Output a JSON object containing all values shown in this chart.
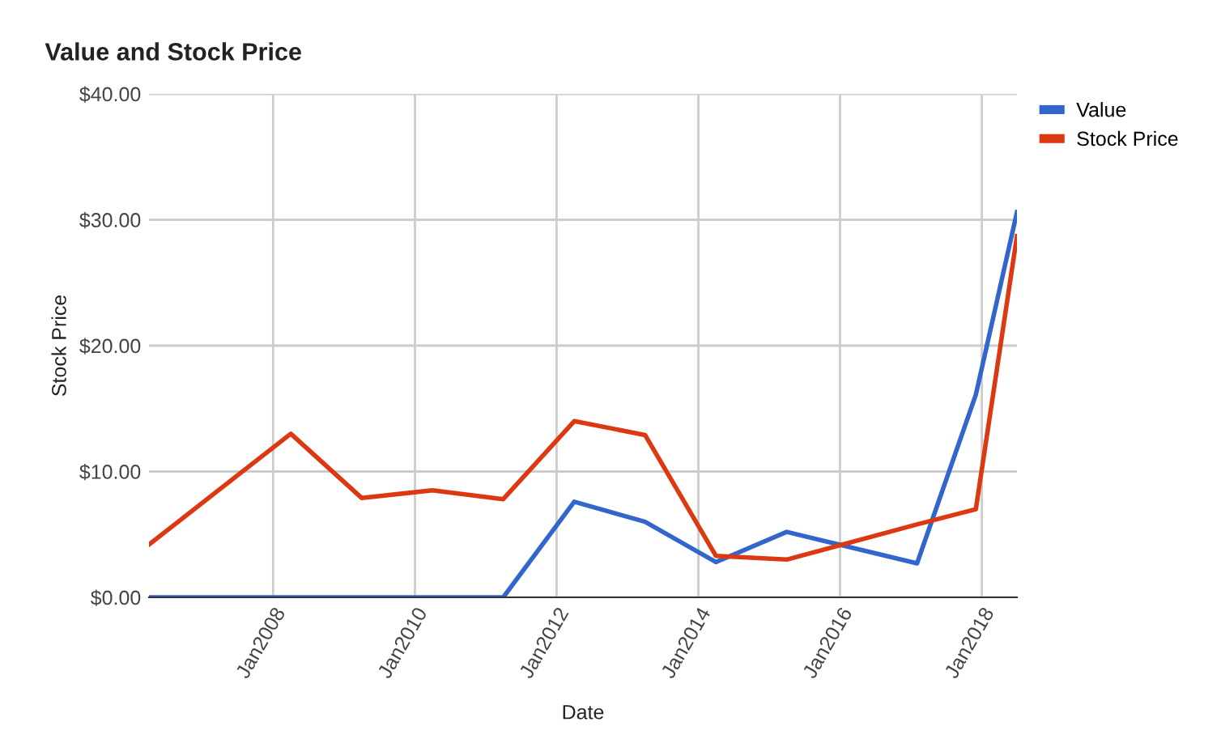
{
  "chart_data": {
    "type": "line",
    "title": "Value and Stock Price",
    "xlabel": "Date",
    "ylabel": "Stock Price",
    "x": [
      "2006-04",
      "2008-04",
      "2009-04",
      "2010-04",
      "2011-04",
      "2012-04",
      "2013-04",
      "2014-04",
      "2015-04",
      "2017-02",
      "2017-12",
      "2018-07"
    ],
    "series": [
      {
        "name": "Value",
        "color": "#3366cc",
        "values": [
          0,
          0,
          0,
          0,
          0,
          7.6,
          6.0,
          2.8,
          5.2,
          2.7,
          16.1,
          30.6
        ]
      },
      {
        "name": "Stock Price",
        "color": "#dc3912",
        "values": [
          4.2,
          13.0,
          7.9,
          8.5,
          7.8,
          14.0,
          12.9,
          3.3,
          3.0,
          5.8,
          7.0,
          28.7
        ]
      }
    ],
    "xlim": [
      "2006-04",
      "2018-07"
    ],
    "xticks": [
      {
        "value": "2008-01",
        "label": "Jan2008"
      },
      {
        "value": "2010-01",
        "label": "Jan2010"
      },
      {
        "value": "2012-01",
        "label": "Jan2012"
      },
      {
        "value": "2014-01",
        "label": "Jan2014"
      },
      {
        "value": "2016-01",
        "label": "Jan2016"
      },
      {
        "value": "2018-01",
        "label": "Jan2018"
      }
    ],
    "ylim": [
      0,
      40
    ],
    "yticks": [
      {
        "value": 0,
        "label": "$0.00"
      },
      {
        "value": 10,
        "label": "$10.00"
      },
      {
        "value": 20,
        "label": "$20.00"
      },
      {
        "value": 30,
        "label": "$30.00"
      },
      {
        "value": 40,
        "label": "$40.00"
      }
    ],
    "grid": true,
    "legend": "top right",
    "marker": "none",
    "line_style": "solid"
  }
}
